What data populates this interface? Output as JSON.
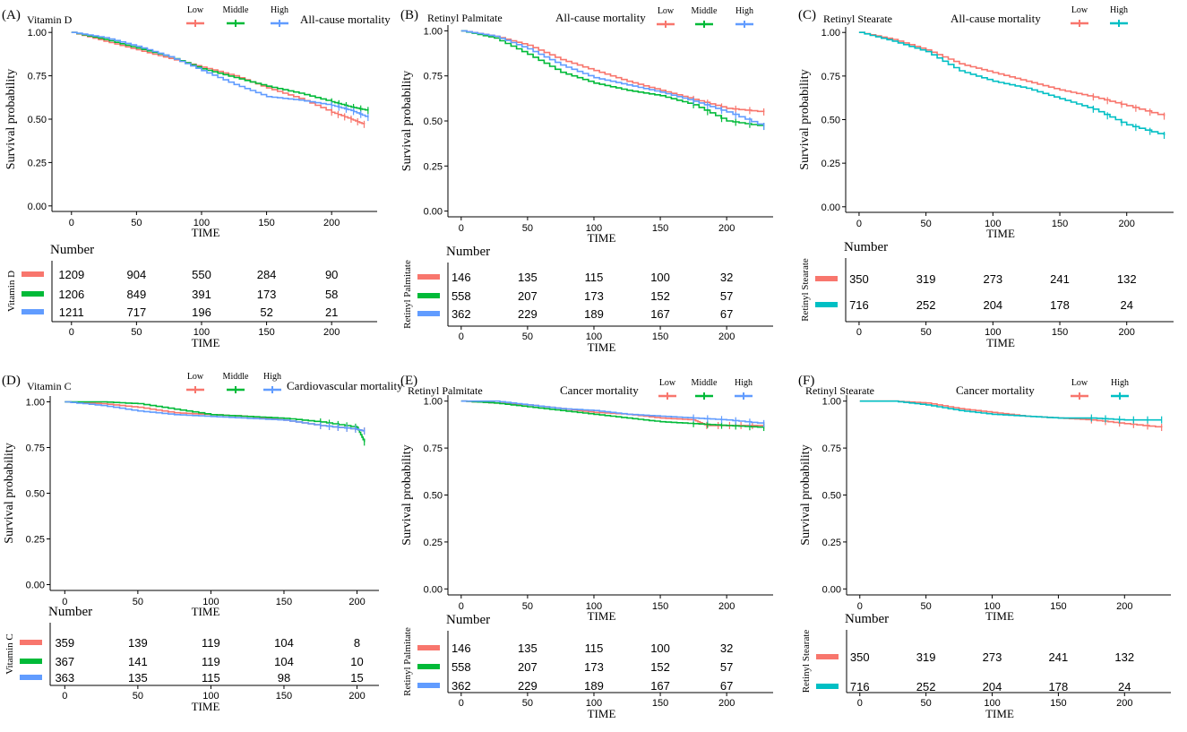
{
  "colors": {
    "low": "#F8766D",
    "middle": "#00BA38",
    "high": "#619CFF",
    "high_two": "#00BFC4"
  },
  "chart_data": [
    {
      "type": "line",
      "panel_label": "(A)",
      "variable": "Vitamin D",
      "outcome": "All-cause mortality",
      "legend": [
        "Low",
        "Middle",
        "High"
      ],
      "xlabel": "TIME",
      "ylabel": "Survival probability",
      "xlim": [
        -15,
        235
      ],
      "ylim": [
        0,
        1
      ],
      "xticks": [
        0,
        50,
        100,
        150,
        200
      ],
      "yticks": [
        "0.00",
        "0.25",
        "0.50",
        "0.75",
        "1.00"
      ],
      "series": [
        {
          "name": "Low",
          "color": "#F8766D",
          "x": [
            0,
            25,
            50,
            75,
            100,
            125,
            150,
            175,
            200,
            215,
            225
          ],
          "y": [
            1.0,
            0.95,
            0.9,
            0.85,
            0.8,
            0.75,
            0.68,
            0.62,
            0.54,
            0.5,
            0.47
          ]
        },
        {
          "name": "Middle",
          "color": "#00BA38",
          "x": [
            0,
            25,
            50,
            75,
            100,
            125,
            150,
            175,
            200,
            215,
            228
          ],
          "y": [
            1.0,
            0.96,
            0.91,
            0.86,
            0.79,
            0.74,
            0.69,
            0.65,
            0.6,
            0.57,
            0.55
          ]
        },
        {
          "name": "High",
          "color": "#619CFF",
          "x": [
            0,
            25,
            50,
            75,
            100,
            125,
            150,
            175,
            200,
            215,
            228
          ],
          "y": [
            1.0,
            0.97,
            0.92,
            0.86,
            0.78,
            0.7,
            0.63,
            0.61,
            0.58,
            0.55,
            0.51
          ]
        }
      ],
      "risk_table": {
        "title": "Number",
        "ylabel": "Vitamin D",
        "xlabel": "TIME",
        "rows": [
          {
            "color": "#F8766D",
            "values": [
              "1209",
              "904",
              "550",
              "284",
              "90"
            ]
          },
          {
            "color": "#00BA38",
            "values": [
              "1206",
              "849",
              "391",
              "173",
              "58"
            ]
          },
          {
            "color": "#619CFF",
            "values": [
              "1211",
              "717",
              "196",
              "52",
              "21"
            ]
          }
        ]
      }
    },
    {
      "type": "line",
      "panel_label": "(B)",
      "variable": "Retinyl Palmitate",
      "outcome": "All-cause mortality",
      "legend": [
        "Low",
        "Middle",
        "High"
      ],
      "xlabel": "TIME",
      "ylabel": "Survival probability",
      "xlim": [
        -10,
        235
      ],
      "ylim": [
        0,
        1
      ],
      "xticks": [
        0,
        50,
        100,
        150,
        200
      ],
      "yticks": [
        "0.00",
        "0.25",
        "0.50",
        "0.75",
        "1.00"
      ],
      "series": [
        {
          "name": "Low",
          "color": "#F8766D",
          "x": [
            0,
            25,
            50,
            75,
            100,
            125,
            150,
            175,
            200,
            228
          ],
          "y": [
            1.0,
            0.97,
            0.92,
            0.84,
            0.78,
            0.72,
            0.67,
            0.62,
            0.57,
            0.55
          ]
        },
        {
          "name": "Middle",
          "color": "#00BA38",
          "x": [
            0,
            25,
            50,
            75,
            100,
            125,
            150,
            175,
            200,
            228
          ],
          "y": [
            1.0,
            0.96,
            0.87,
            0.77,
            0.71,
            0.67,
            0.64,
            0.59,
            0.5,
            0.47
          ]
        },
        {
          "name": "High",
          "color": "#619CFF",
          "x": [
            0,
            25,
            50,
            75,
            100,
            125,
            150,
            175,
            200,
            228
          ],
          "y": [
            1.0,
            0.97,
            0.9,
            0.81,
            0.74,
            0.7,
            0.66,
            0.61,
            0.55,
            0.47
          ]
        }
      ],
      "risk_table": {
        "title": "Number",
        "ylabel": "Retinyl Palmitate",
        "xlabel": "TIME",
        "rows": [
          {
            "color": "#F8766D",
            "values": [
              "146",
              "135",
              "115",
              "100",
              "32"
            ]
          },
          {
            "color": "#00BA38",
            "values": [
              "558",
              "207",
              "173",
              "152",
              "57"
            ]
          },
          {
            "color": "#619CFF",
            "values": [
              "362",
              "229",
              "189",
              "167",
              "67"
            ]
          }
        ]
      }
    },
    {
      "type": "line",
      "panel_label": "(C)",
      "variable": "Retinyl Stearate",
      "outcome": "All-cause mortality",
      "legend": [
        "Low",
        "High"
      ],
      "xlabel": "TIME",
      "ylabel": "Survival probability",
      "xlim": [
        -10,
        235
      ],
      "ylim": [
        0,
        1
      ],
      "xticks": [
        0,
        50,
        100,
        150,
        200
      ],
      "yticks": [
        "0.00",
        "0.25",
        "0.50",
        "0.75",
        "1.00"
      ],
      "series": [
        {
          "name": "Low",
          "color": "#F8766D",
          "x": [
            0,
            25,
            50,
            75,
            100,
            125,
            150,
            175,
            200,
            228
          ],
          "y": [
            1.0,
            0.96,
            0.9,
            0.82,
            0.77,
            0.72,
            0.67,
            0.63,
            0.58,
            0.52
          ]
        },
        {
          "name": "High",
          "color": "#00BFC4",
          "x": [
            0,
            25,
            50,
            75,
            100,
            125,
            150,
            175,
            200,
            228
          ],
          "y": [
            1.0,
            0.95,
            0.89,
            0.78,
            0.72,
            0.68,
            0.62,
            0.56,
            0.47,
            0.41
          ]
        }
      ],
      "risk_table": {
        "title": "Number",
        "ylabel": "Retinyl Stearate",
        "xlabel": "TIME",
        "rows": [
          {
            "color": "#F8766D",
            "values": [
              "350",
              "319",
              "273",
              "241",
              "132"
            ]
          },
          {
            "color": "#00BFC4",
            "values": [
              "716",
              "252",
              "204",
              "178",
              "24"
            ]
          }
        ]
      }
    },
    {
      "type": "line",
      "panel_label": "(D)",
      "variable": "Vitamin C",
      "outcome": "Cardiovascular mortality",
      "legend": [
        "Low",
        "Middle",
        "High"
      ],
      "xlabel": "TIME",
      "ylabel": "Survival probability",
      "xlim": [
        -10,
        215
      ],
      "ylim": [
        0,
        1
      ],
      "xticks": [
        0,
        50,
        100,
        150,
        200
      ],
      "yticks": [
        "0.00",
        "0.25",
        "0.50",
        "0.75",
        "1.00"
      ],
      "series": [
        {
          "name": "Low",
          "color": "#F8766D",
          "x": [
            0,
            25,
            50,
            75,
            100,
            125,
            150,
            175,
            200,
            205
          ],
          "y": [
            1.0,
            0.99,
            0.97,
            0.94,
            0.93,
            0.92,
            0.9,
            0.87,
            0.85,
            0.84
          ]
        },
        {
          "name": "Middle",
          "color": "#00BA38",
          "x": [
            0,
            25,
            50,
            75,
            100,
            125,
            150,
            175,
            200,
            205
          ],
          "y": [
            1.0,
            1.0,
            0.99,
            0.96,
            0.93,
            0.92,
            0.91,
            0.89,
            0.86,
            0.78
          ]
        },
        {
          "name": "High",
          "color": "#619CFF",
          "x": [
            0,
            25,
            50,
            75,
            100,
            125,
            150,
            175,
            200,
            205
          ],
          "y": [
            1.0,
            0.98,
            0.95,
            0.93,
            0.92,
            0.91,
            0.9,
            0.87,
            0.85,
            0.84
          ]
        }
      ],
      "risk_table": {
        "title": "Number",
        "ylabel": "Vitamin C",
        "xlabel": "TIME",
        "rows": [
          {
            "color": "#F8766D",
            "values": [
              "359",
              "139",
              "119",
              "104",
              "8"
            ]
          },
          {
            "color": "#00BA38",
            "values": [
              "367",
              "141",
              "119",
              "104",
              "10"
            ]
          },
          {
            "color": "#619CFF",
            "values": [
              "363",
              "135",
              "115",
              "98",
              "15"
            ]
          }
        ]
      }
    },
    {
      "type": "line",
      "panel_label": "(E)",
      "variable": "Retinyl Palmitate",
      "outcome": "Cancer mortality",
      "legend": [
        "Low",
        "Middle",
        "High"
      ],
      "xlabel": "TIME",
      "ylabel": "Survival probability",
      "xlim": [
        -10,
        235
      ],
      "ylim": [
        0,
        1
      ],
      "xticks": [
        0,
        50,
        100,
        150,
        200
      ],
      "yticks": [
        "0.00",
        "0.25",
        "0.50",
        "0.75",
        "1.00"
      ],
      "series": [
        {
          "name": "Low",
          "color": "#F8766D",
          "x": [
            0,
            25,
            50,
            75,
            100,
            125,
            150,
            175,
            185,
            200,
            228
          ],
          "y": [
            1.0,
            0.99,
            0.98,
            0.96,
            0.94,
            0.93,
            0.91,
            0.9,
            0.87,
            0.87,
            0.87
          ]
        },
        {
          "name": "Middle",
          "color": "#00BA38",
          "x": [
            0,
            25,
            50,
            75,
            100,
            125,
            150,
            175,
            200,
            228
          ],
          "y": [
            1.0,
            0.99,
            0.97,
            0.95,
            0.93,
            0.91,
            0.89,
            0.88,
            0.87,
            0.86
          ]
        },
        {
          "name": "High",
          "color": "#619CFF",
          "x": [
            0,
            25,
            50,
            75,
            100,
            125,
            150,
            175,
            200,
            228
          ],
          "y": [
            1.0,
            1.0,
            0.98,
            0.96,
            0.95,
            0.93,
            0.92,
            0.91,
            0.9,
            0.88
          ]
        }
      ],
      "risk_table": {
        "title": "Number",
        "ylabel": "Retinyl Palmitate",
        "xlabel": "TIME",
        "rows": [
          {
            "color": "#F8766D",
            "values": [
              "146",
              "135",
              "115",
              "100",
              "32"
            ]
          },
          {
            "color": "#00BA38",
            "values": [
              "558",
              "207",
              "173",
              "152",
              "57"
            ]
          },
          {
            "color": "#619CFF",
            "values": [
              "362",
              "229",
              "189",
              "167",
              "67"
            ]
          }
        ]
      }
    },
    {
      "type": "line",
      "panel_label": "(F)",
      "variable": "Retinyl Stearate",
      "outcome": "Cancer mortality",
      "legend": [
        "Low",
        "High"
      ],
      "xlabel": "TIME",
      "ylabel": "Survival probability",
      "xlim": [
        -10,
        235
      ],
      "ylim": [
        0,
        1
      ],
      "xticks": [
        0,
        50,
        100,
        150,
        200
      ],
      "yticks": [
        "0.00",
        "0.25",
        "0.50",
        "0.75",
        "1.00"
      ],
      "series": [
        {
          "name": "Low",
          "color": "#F8766D",
          "x": [
            0,
            25,
            50,
            75,
            100,
            125,
            150,
            175,
            200,
            228
          ],
          "y": [
            1.0,
            1.0,
            0.99,
            0.96,
            0.94,
            0.92,
            0.91,
            0.9,
            0.88,
            0.86
          ]
        },
        {
          "name": "High",
          "color": "#00BFC4",
          "x": [
            0,
            25,
            50,
            75,
            100,
            125,
            150,
            175,
            200,
            228
          ],
          "y": [
            1.0,
            1.0,
            0.98,
            0.95,
            0.93,
            0.92,
            0.91,
            0.91,
            0.9,
            0.9
          ]
        }
      ],
      "risk_table": {
        "title": "Number",
        "ylabel": "Retinyl Stearate",
        "xlabel": "TIME",
        "rows": [
          {
            "color": "#F8766D",
            "values": [
              "350",
              "319",
              "273",
              "241",
              "132"
            ]
          },
          {
            "color": "#00BFC4",
            "values": [
              "716",
              "252",
              "204",
              "178",
              "24"
            ]
          }
        ]
      }
    }
  ]
}
